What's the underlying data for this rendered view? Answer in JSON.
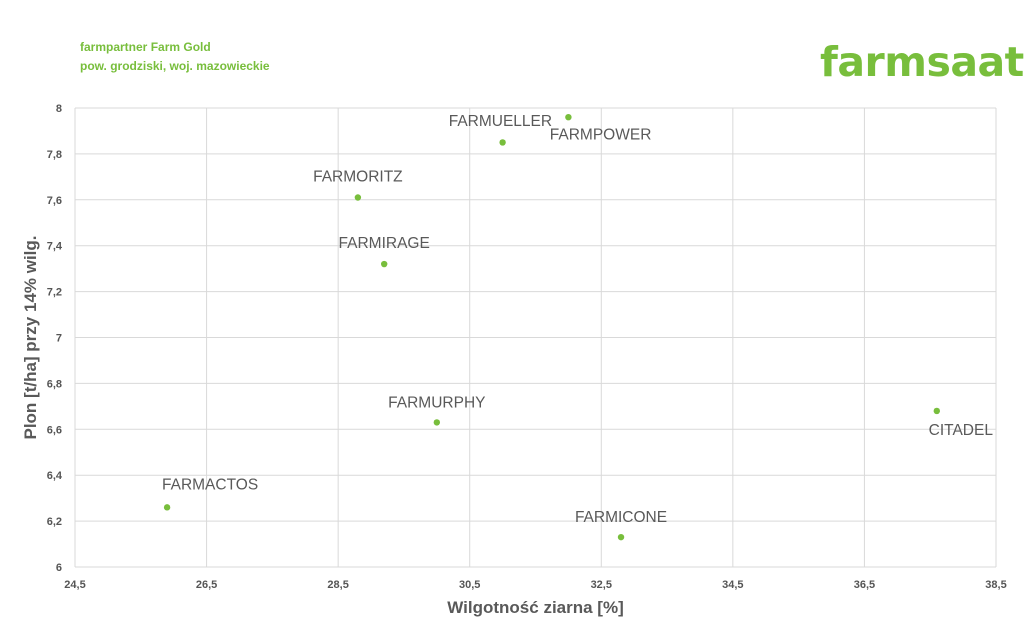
{
  "header": {
    "line1": "farmpartner Farm Gold",
    "line2": "pow. grodziski, woj. mazowieckie",
    "logo": "farmsaat"
  },
  "colors": {
    "accent": "#78be3c",
    "grid": "#d9d9d9",
    "text": "#595959"
  },
  "chart_data": {
    "type": "scatter",
    "xlabel": "Wilgotność ziarna [%]",
    "ylabel": "Plon [t/ha] przy 14% wilg.",
    "xlim": [
      24.5,
      38.5
    ],
    "ylim": [
      6,
      8
    ],
    "xticks": [
      "24,5",
      "26,5",
      "28,5",
      "30,5",
      "32,5",
      "34,5",
      "36,5",
      "38,5"
    ],
    "yticks": [
      "6",
      "6,2",
      "6,4",
      "6,6",
      "6,8",
      "7",
      "7,2",
      "7,4",
      "7,6",
      "7,8",
      "8"
    ],
    "grid": true,
    "points": [
      {
        "label": "FARMUELLER",
        "x": 32.0,
        "y": 7.96
      },
      {
        "label": "FARMPOWER",
        "x": 31.0,
        "y": 7.85
      },
      {
        "label": "FARMORITZ",
        "x": 28.8,
        "y": 7.61
      },
      {
        "label": "FARMIRAGE",
        "x": 29.2,
        "y": 7.32
      },
      {
        "label": "FARMURPHY",
        "x": 30.0,
        "y": 6.63
      },
      {
        "label": "CITADEL",
        "x": 37.6,
        "y": 6.68
      },
      {
        "label": "FARMACTOS",
        "x": 25.9,
        "y": 6.26
      },
      {
        "label": "FARMICONE",
        "x": 32.8,
        "y": 6.13
      }
    ]
  }
}
